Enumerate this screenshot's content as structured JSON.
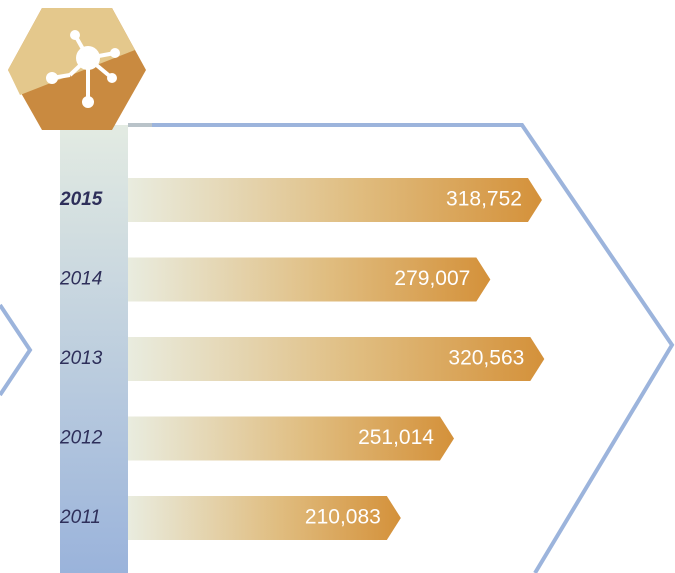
{
  "chart_data": {
    "type": "bar",
    "orientation": "horizontal",
    "categories": [
      "2015",
      "2014",
      "2013",
      "2012",
      "2011"
    ],
    "values": [
      318752,
      279007,
      320563,
      251014,
      210083
    ],
    "value_labels": [
      "318,752",
      "279,007",
      "320,563",
      "251,014",
      "210,083"
    ],
    "color": "#d4913a"
  }
}
